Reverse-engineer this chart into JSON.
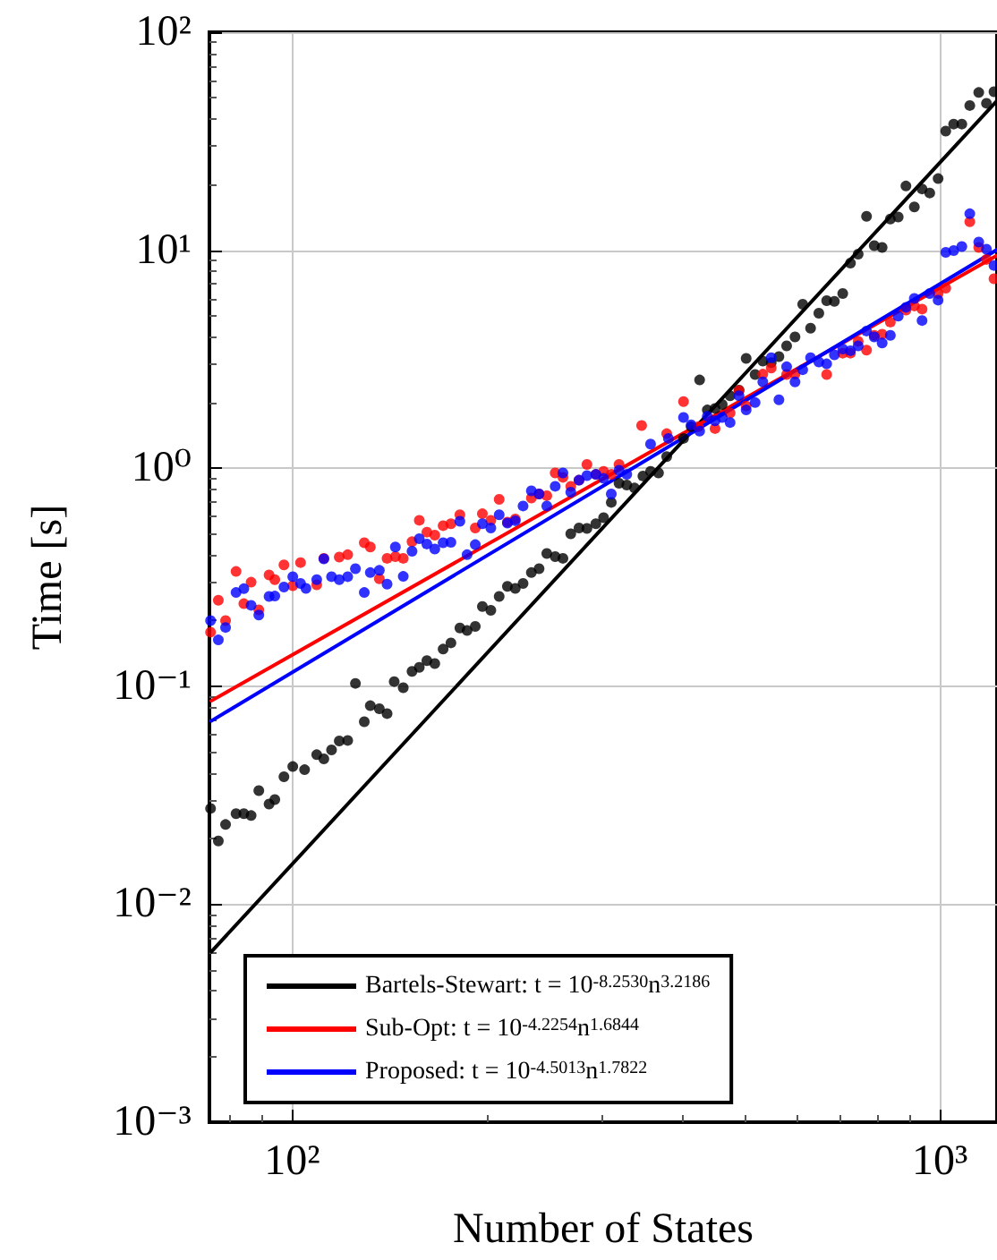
{
  "chart_data": {
    "type": "scatter",
    "xlabel": "Number of States",
    "ylabel": "Time [s]",
    "log": "xy",
    "grid": true,
    "legend": "bottom",
    "marker": "circle",
    "xlim": [
      74.5,
      1225
    ],
    "ylim": [
      0.001,
      100
    ],
    "xticks": [
      {
        "value": 100,
        "label": "10²"
      },
      {
        "value": 1000,
        "label": "10³"
      }
    ],
    "yticks": [
      {
        "value": 0.001,
        "label": "10⁻³"
      },
      {
        "value": 0.01,
        "label": "10⁻²"
      },
      {
        "value": 0.1,
        "label": "10⁻¹"
      },
      {
        "value": 1,
        "label": "10⁰"
      },
      {
        "value": 10,
        "label": "10¹"
      },
      {
        "value": 100,
        "label": "10²"
      }
    ],
    "series": [
      {
        "color": "#000000",
        "x": [
          74.8,
          76.9,
          78.9,
          81.9,
          84.2,
          86.4,
          88.8,
          92.1,
          94.0,
          97.1,
          100.2,
          104.5,
          109.1,
          111.9,
          115.0,
          118.2,
          121.8,
          125.2,
          129.2,
          132.0,
          136.3,
          140.1,
          143.7,
          148.4,
          153.1,
          157.1,
          161.4,
          166.0,
          171.0,
          175.8,
          181.5,
          186.2,
          191.7,
          196.6,
          202.6,
          208.7,
          214.9,
          221.0,
          227.2,
          234.0,
          240.5,
          247.2,
          254.7,
          261.8,
          269.2,
          277.2,
          285.1,
          294.3,
          302.5,
          310.9,
          319.6,
          328.5,
          337.7,
          347.9,
          357.5,
          367.7,
          378.6,
          401.9,
          413.0,
          425.6,
          437.4,
          449.6,
          461.2,
          474.3,
          489.6,
          502.2,
          518.4,
          532.8,
          549.0,
          564.2,
          579.9,
          597.4,
          614.0,
          631.4,
          650.2,
          668.6,
          687.2,
          707.9,
          727.6,
          747.8,
          770.4,
          791.8,
          814.3,
          838.5,
          862.2,
          886.2,
          913.1,
          938.5,
          964.5,
          993.6,
          1021,
          1050,
          1081,
          1112,
          1148,
          1180,
          1212
        ],
        "values": [
          0.0275,
          0.0195,
          0.0232,
          0.026,
          0.026,
          0.0255,
          0.0332,
          0.0288,
          0.0302,
          0.0384,
          0.0428,
          0.0414,
          0.0485,
          0.0464,
          0.051,
          0.0561,
          0.0564,
          0.103,
          0.0687,
          0.0814,
          0.0788,
          0.0749,
          0.105,
          0.0984,
          0.117,
          0.122,
          0.131,
          0.127,
          0.148,
          0.158,
          0.185,
          0.18,
          0.188,
          0.232,
          0.223,
          0.258,
          0.287,
          0.281,
          0.296,
          0.332,
          0.346,
          0.406,
          0.393,
          0.386,
          0.5,
          0.532,
          0.529,
          0.556,
          0.593,
          0.697,
          0.853,
          0.837,
          0.811,
          0.921,
          0.968,
          0.951,
          1.13,
          1.37,
          1.55,
          2.54,
          1.85,
          1.88,
          1.96,
          2.15,
          2.28,
          3.19,
          2.69,
          3.1,
          3.05,
          3.25,
          3.64,
          4.0,
          5.65,
          4.39,
          5.14,
          5.87,
          5.83,
          6.33,
          8.73,
          9.59,
          14.3,
          10.5,
          10.3,
          13.9,
          14.2,
          19.7,
          15.8,
          19.1,
          18.3,
          21.3,
          35.2,
          37.9,
          37.9,
          46.1,
          52.9,
          47.2,
          53.3
        ]
      },
      {
        "color": "#ff0000",
        "x": [
          74.8,
          76.9,
          78.9,
          81.9,
          84.2,
          86.4,
          88.8,
          92.1,
          94.0,
          97.1,
          100.2,
          103.0,
          109.1,
          111.9,
          118.2,
          121.8,
          129.2,
          132.0,
          136.3,
          140.1,
          144.3,
          148.4,
          153.1,
          157.1,
          161.4,
          166.0,
          171.0,
          175.8,
          181.5,
          191.7,
          196.6,
          202.6,
          208.7,
          214.9,
          221.0,
          234.0,
          240.5,
          247.2,
          254.7,
          261.8,
          269.2,
          277.2,
          285.1,
          294.3,
          302.5,
          310.9,
          319.6,
          346.3,
          378.6,
          401.9,
          423.7,
          449.6,
          474.3,
          489.6,
          502.2,
          532.8,
          549.0,
          579.9,
          597.4,
          668.6,
          707.9,
          727.6,
          747.8,
          770.4,
          791.8,
          814.3,
          838.5,
          886.2,
          913.1,
          938.5,
          993.6,
          1021,
          1112,
          1148,
          1180,
          1212
        ],
        "values": [
          0.177,
          0.248,
          0.2,
          0.336,
          0.239,
          0.3,
          0.224,
          0.324,
          0.308,
          0.36,
          0.289,
          0.369,
          0.292,
          0.386,
          0.391,
          0.401,
          0.455,
          0.435,
          0.311,
          0.386,
          0.393,
          0.386,
          0.46,
          0.577,
          0.509,
          0.493,
          0.545,
          0.556,
          0.611,
          0.532,
          0.618,
          0.577,
          0.72,
          0.566,
          0.585,
          0.73,
          0.762,
          0.748,
          0.951,
          0.908,
          0.826,
          0.881,
          1.04,
          0.937,
          0.968,
          0.937,
          1.04,
          1.57,
          1.44,
          2.02,
          1.55,
          1.52,
          1.79,
          2.27,
          1.93,
          2.7,
          2.88,
          2.69,
          2.7,
          2.69,
          3.37,
          3.37,
          3.82,
          3.48,
          4.07,
          4.12,
          4.68,
          5.31,
          5.55,
          5.37,
          6.33,
          6.7,
          13.5,
          10.3,
          9.07,
          7.4
        ]
      },
      {
        "color": "#0000ff",
        "x": [
          74.8,
          76.9,
          78.9,
          81.9,
          84.2,
          86.4,
          88.8,
          92.1,
          94.0,
          97.1,
          100.2,
          103.0,
          105.0,
          109.1,
          111.9,
          115.0,
          118.2,
          121.8,
          125.2,
          129.2,
          132.0,
          136.3,
          140.1,
          144.3,
          148.4,
          153.1,
          157.1,
          161.4,
          166.0,
          171.0,
          175.8,
          181.5,
          186.2,
          191.7,
          196.6,
          202.6,
          208.7,
          214.9,
          221.0,
          227.2,
          234.0,
          240.5,
          247.2,
          254.7,
          261.8,
          269.2,
          277.2,
          285.1,
          294.3,
          302.5,
          310.9,
          319.6,
          328.5,
          357.5,
          380.9,
          401.9,
          413.0,
          425.6,
          437.4,
          449.6,
          461.2,
          474.3,
          489.6,
          502.2,
          518.4,
          532.8,
          549.0,
          564.2,
          579.9,
          597.4,
          614.0,
          631.4,
          650.2,
          668.6,
          687.2,
          707.9,
          727.6,
          747.8,
          770.4,
          791.8,
          814.3,
          838.5,
          862.2,
          886.2,
          913.1,
          938.5,
          964.5,
          993.6,
          1021,
          1050,
          1081,
          1112,
          1148,
          1180,
          1212
        ],
        "values": [
          0.2,
          0.163,
          0.186,
          0.269,
          0.28,
          0.235,
          0.212,
          0.258,
          0.259,
          0.285,
          0.318,
          0.296,
          0.281,
          0.308,
          0.384,
          0.318,
          0.308,
          0.318,
          0.346,
          0.269,
          0.332,
          0.34,
          0.294,
          0.435,
          0.319,
          0.416,
          0.475,
          0.449,
          0.426,
          0.455,
          0.457,
          0.571,
          0.401,
          0.446,
          0.556,
          0.532,
          0.611,
          0.56,
          0.574,
          0.671,
          0.787,
          0.762,
          0.671,
          0.826,
          0.951,
          0.776,
          0.881,
          0.925,
          0.937,
          0.898,
          0.762,
          0.979,
          0.937,
          1.29,
          1.37,
          1.71,
          1.58,
          1.48,
          1.73,
          1.65,
          1.71,
          1.62,
          2.15,
          1.85,
          2.0,
          2.49,
          3.21,
          2.06,
          2.92,
          2.49,
          2.83,
          3.21,
          3.07,
          3.01,
          3.31,
          3.52,
          3.46,
          3.64,
          4.26,
          4.0,
          3.75,
          4.07,
          4.98,
          5.47,
          6.01,
          4.76,
          6.33,
          5.9,
          9.77,
          9.96,
          10.4,
          14.7,
          10.9,
          10.1,
          8.51
        ]
      },
      {
        "type": "line",
        "name": "Bartels-Stewart: t = 10$^{-8.2530}$n$^{3.2186}$",
        "color": "#000000",
        "marker": "none",
        "line_style": "solid",
        "x": [
          75,
          1225
        ],
        "values": [
          0.00605,
          48.5
        ]
      },
      {
        "type": "line",
        "name": "Sub-Opt: t = 10$^{-4.2254}$n$^{1.6844}$",
        "color": "#ff0000",
        "marker": "none",
        "line_style": "solid",
        "x": [
          75,
          1225
        ],
        "values": [
          0.0857,
          9.46
        ]
      },
      {
        "type": "line",
        "name": "Proposed: t = 10$^{-4.5013}$n$^{1.7822}$",
        "color": "#0000ff",
        "marker": "none",
        "line_style": "solid",
        "x": [
          75,
          1225
        ],
        "values": [
          0.0693,
          10.05
        ]
      }
    ]
  }
}
